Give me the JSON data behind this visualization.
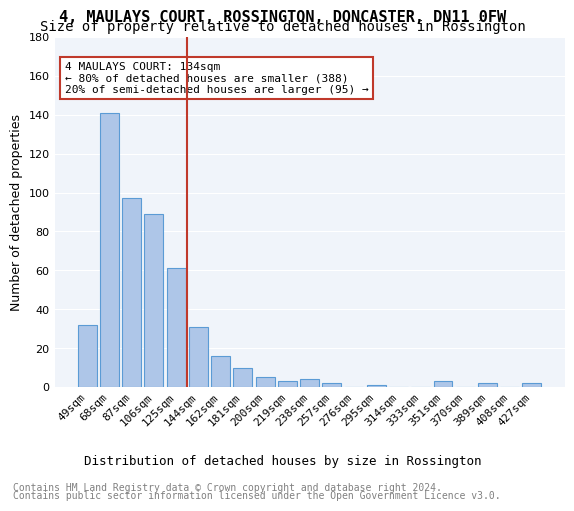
{
  "title": "4, MAULAYS COURT, ROSSINGTON, DONCASTER, DN11 0FW",
  "subtitle": "Size of property relative to detached houses in Rossington",
  "xlabel": "Distribution of detached houses by size in Rossington",
  "ylabel": "Number of detached properties",
  "categories": [
    "49sqm",
    "68sqm",
    "87sqm",
    "106sqm",
    "125sqm",
    "144sqm",
    "162sqm",
    "181sqm",
    "200sqm",
    "219sqm",
    "238sqm",
    "257sqm",
    "276sqm",
    "295sqm",
    "314sqm",
    "333sqm",
    "351sqm",
    "370sqm",
    "389sqm",
    "408sqm",
    "427sqm"
  ],
  "values": [
    32,
    141,
    97,
    89,
    61,
    31,
    16,
    10,
    5,
    3,
    4,
    2,
    0,
    1,
    0,
    0,
    3,
    0,
    2,
    0,
    2
  ],
  "bar_color": "#aec6e8",
  "bar_edge_color": "#5b9bd5",
  "vline_x": 5,
  "vline_color": "#c0392b",
  "annotation_lines": [
    "4 MAULAYS COURT: 134sqm",
    "← 80% of detached houses are smaller (388)",
    "20% of semi-detached houses are larger (95) →"
  ],
  "annotation_box_color": "#c0392b",
  "ylim": [
    0,
    180
  ],
  "yticks": [
    0,
    20,
    40,
    60,
    80,
    100,
    120,
    140,
    160,
    180
  ],
  "footnote1": "Contains HM Land Registry data © Crown copyright and database right 2024.",
  "footnote2": "Contains public sector information licensed under the Open Government Licence v3.0.",
  "background_color": "#f0f4fa",
  "grid_color": "#ffffff",
  "title_fontsize": 11,
  "subtitle_fontsize": 10,
  "axis_label_fontsize": 9,
  "tick_fontsize": 8,
  "annotation_fontsize": 8,
  "footnote_fontsize": 7
}
